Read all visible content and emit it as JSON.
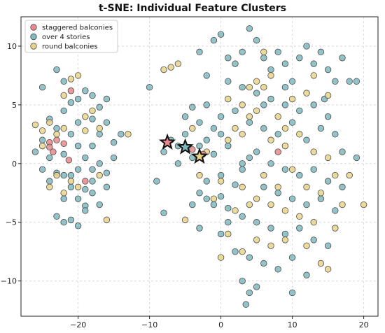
{
  "chart_data": {
    "type": "scatter",
    "title": "t-SNE: Individual Feature Clusters",
    "xlabel": "",
    "ylabel": "",
    "xlim": [
      -28,
      22
    ],
    "ylim": [
      -13,
      12.5
    ],
    "xticks": [
      -20,
      -10,
      0,
      10,
      20
    ],
    "yticks": [
      -10,
      -5,
      0,
      5,
      10
    ],
    "grid": true,
    "legend_position": "top-left",
    "series": [
      {
        "name": "staggered balconies",
        "color": "#e8888a",
        "points": [
          [
            -21,
            6.2
          ],
          [
            -24,
            1.8
          ],
          [
            -24,
            1.4
          ],
          [
            -23.5,
            1.0
          ],
          [
            -19,
            -1.5
          ],
          [
            -21.3,
            0.3
          ],
          [
            -23,
            2.0
          ],
          [
            8,
            1.0
          ],
          [
            -2.5,
            0.8
          ],
          [
            -4,
            1.2
          ],
          [
            -22,
            1.7
          ]
        ]
      },
      {
        "name": "over 4 stories",
        "color": "#7fb9be",
        "points": [
          [
            -25,
            6.5
          ],
          [
            -23,
            8.0
          ],
          [
            -22,
            7.0
          ],
          [
            -21,
            5.2
          ],
          [
            -20,
            5.5
          ],
          [
            -19,
            6.2
          ],
          [
            -18,
            5.8
          ],
          [
            -17,
            4.8
          ],
          [
            -16,
            5.5
          ],
          [
            -22,
            4.5
          ],
          [
            -20,
            3.5
          ],
          [
            -18,
            3.8
          ],
          [
            -23,
            3.0
          ],
          [
            -25,
            2.0
          ],
          [
            -26,
            1.0
          ],
          [
            -25,
            -0.5
          ],
          [
            -24,
            -1.5
          ],
          [
            -22,
            -1.0
          ],
          [
            -20,
            -0.5
          ],
          [
            -19,
            0.5
          ],
          [
            -18,
            1.5
          ],
          [
            -17,
            0.0
          ],
          [
            -16,
            -0.8
          ],
          [
            -15,
            1.8
          ],
          [
            -17,
            2.5
          ],
          [
            -23,
            -0.8
          ],
          [
            -21,
            -2.0
          ],
          [
            -20,
            -3.0
          ],
          [
            -19,
            -3.6
          ],
          [
            -18,
            -2.5
          ],
          [
            -17,
            -3.5
          ],
          [
            -23,
            -4.5
          ],
          [
            -22,
            -5.0
          ],
          [
            -21,
            -4.8
          ],
          [
            -20,
            -5.3
          ],
          [
            -19,
            -4.0
          ],
          [
            -22,
            -3.0
          ],
          [
            -21,
            -1.0
          ],
          [
            -18,
            -1.5
          ],
          [
            -16,
            -2.0
          ],
          [
            -24,
            0.5
          ],
          [
            -20,
            1.5
          ],
          [
            -22,
            0.8
          ],
          [
            -18,
            -0.5
          ],
          [
            -15,
            0.5
          ],
          [
            -14,
            2.5
          ],
          [
            -16,
            3.5
          ],
          [
            -24,
            3.8
          ],
          [
            -21,
            2.5
          ],
          [
            -19,
            -2.2
          ],
          [
            -10,
            6.5
          ],
          [
            -8,
            1.0
          ],
          [
            -7,
            2.0
          ],
          [
            -6,
            1.5
          ],
          [
            -5,
            2.5
          ],
          [
            -4,
            0.5
          ],
          [
            -3,
            1.5
          ],
          [
            -2,
            2.0
          ],
          [
            -1,
            3.0
          ],
          [
            0,
            2.5
          ],
          [
            -8,
            -4.2
          ],
          [
            -4,
            -3.5
          ],
          [
            -3,
            -2.5
          ],
          [
            -2,
            -3.0
          ],
          [
            -1,
            -3.5
          ],
          [
            0,
            -2.8
          ],
          [
            1,
            -3.8
          ],
          [
            -5,
            4.0
          ],
          [
            -3,
            3.5
          ],
          [
            -6,
            0.0
          ],
          [
            -9,
            -1.5
          ],
          [
            -2,
            -1.5
          ],
          [
            0,
            -1.0
          ],
          [
            2,
            -1.8
          ],
          [
            3,
            -0.5
          ],
          [
            4,
            0.5
          ],
          [
            -1,
            0.8
          ],
          [
            1,
            1.5
          ],
          [
            0,
            4.0
          ],
          [
            -4,
            4.8
          ],
          [
            -3,
            9.5
          ],
          [
            -1,
            10.5
          ],
          [
            0,
            11.0
          ],
          [
            1,
            9.0
          ],
          [
            2,
            8.5
          ],
          [
            3,
            9.5
          ],
          [
            4,
            11.5
          ],
          [
            5,
            10.5
          ],
          [
            6,
            9.0
          ],
          [
            7,
            8.0
          ],
          [
            8,
            9.5
          ],
          [
            9,
            8.5
          ],
          [
            10,
            7.0
          ],
          [
            11,
            9.0
          ],
          [
            12,
            10.0
          ],
          [
            13,
            8.5
          ],
          [
            14,
            9.5
          ],
          [
            15,
            8.0
          ],
          [
            16,
            7.0
          ],
          [
            17,
            9.0
          ],
          [
            -2,
            7.5
          ],
          [
            1,
            7.0
          ],
          [
            3,
            6.5
          ],
          [
            5,
            6.0
          ],
          [
            7,
            5.5
          ],
          [
            9,
            5.0
          ],
          [
            11,
            4.5
          ],
          [
            13,
            5.0
          ],
          [
            15,
            4.0
          ],
          [
            18,
            7.0
          ],
          [
            2,
            4.5
          ],
          [
            4,
            3.5
          ],
          [
            6,
            3.0
          ],
          [
            8,
            2.5
          ],
          [
            10,
            3.5
          ],
          [
            12,
            2.0
          ],
          [
            14,
            3.0
          ],
          [
            16,
            2.5
          ],
          [
            17,
            1.0
          ],
          [
            19,
            0.5
          ],
          [
            5,
            1.0
          ],
          [
            7,
            0.0
          ],
          [
            9,
            -0.5
          ],
          [
            11,
            -1.0
          ],
          [
            13,
            -0.5
          ],
          [
            15,
            -1.5
          ],
          [
            17,
            -2.0
          ],
          [
            6,
            -2.0
          ],
          [
            8,
            -2.5
          ],
          [
            10,
            -3.0
          ],
          [
            12,
            -3.5
          ],
          [
            14,
            -3.0
          ],
          [
            16,
            -4.0
          ],
          [
            3,
            -4.5
          ],
          [
            5,
            -5.0
          ],
          [
            7,
            -5.5
          ],
          [
            9,
            -6.0
          ],
          [
            11,
            -5.5
          ],
          [
            13,
            -6.5
          ],
          [
            15,
            -7.0
          ],
          [
            2,
            -7.5
          ],
          [
            4,
            -8.0
          ],
          [
            6,
            -8.5
          ],
          [
            8,
            -9.0
          ],
          [
            10,
            -8.0
          ],
          [
            12,
            -9.5
          ],
          [
            3,
            -10.0
          ],
          [
            4,
            -11.0
          ],
          [
            5,
            -10.5
          ],
          [
            3.5,
            -12.0
          ],
          [
            10,
            -11.0
          ],
          [
            0,
            -6.0
          ],
          [
            1,
            -5.0
          ],
          [
            -3,
            -5.5
          ],
          [
            6,
            5.0
          ],
          [
            9,
            6.5
          ],
          [
            19,
            7.0
          ],
          [
            14.5,
            5.5
          ],
          [
            -2,
            5.0
          ],
          [
            3,
            0.0
          ]
        ]
      },
      {
        "name": "round balconies",
        "color": "#e8d389",
        "points": [
          [
            -26,
            3.3
          ],
          [
            -25,
            2.8
          ],
          [
            -24,
            3.5
          ],
          [
            -23,
            2.5
          ],
          [
            -22,
            3.0
          ],
          [
            -21,
            7.2
          ],
          [
            -20,
            7.5
          ],
          [
            -19,
            4.0
          ],
          [
            -18,
            4.5
          ],
          [
            -17,
            3.0
          ],
          [
            -24,
            -2.0
          ],
          [
            -22,
            -2.5
          ],
          [
            -21,
            -1.5
          ],
          [
            -20,
            -2.0
          ],
          [
            -23,
            -1.0
          ],
          [
            -19,
            2.8
          ],
          [
            -17,
            -1.0
          ],
          [
            -16,
            -4.8
          ],
          [
            -25,
            1.5
          ],
          [
            -22,
            5.8
          ],
          [
            -13,
            2.5
          ],
          [
            -8,
            8.0
          ],
          [
            -6,
            8.5
          ],
          [
            -4,
            3.0
          ],
          [
            -2,
            1.0
          ],
          [
            1,
            2.0
          ],
          [
            2,
            3.0
          ],
          [
            3,
            2.5
          ],
          [
            4,
            4.0
          ],
          [
            5,
            4.5
          ],
          [
            6,
            6.5
          ],
          [
            7,
            7.5
          ],
          [
            8,
            4.0
          ],
          [
            9,
            3.0
          ],
          [
            10,
            5.5
          ],
          [
            12,
            6.0
          ],
          [
            13,
            7.5
          ],
          [
            4,
            6.5
          ],
          [
            5,
            7.0
          ],
          [
            6,
            9.5
          ],
          [
            7,
            2.0
          ],
          [
            9,
            1.5
          ],
          [
            11,
            2.5
          ],
          [
            13,
            1.0
          ],
          [
            15,
            0.5
          ],
          [
            16,
            -1.0
          ],
          [
            18,
            -1.0
          ],
          [
            20,
            -3.5
          ],
          [
            17,
            -3.5
          ],
          [
            16,
            -5.5
          ],
          [
            13,
            -5.0
          ],
          [
            11,
            -4.5
          ],
          [
            9,
            -4.0
          ],
          [
            7,
            -3.5
          ],
          [
            5,
            -3.0
          ],
          [
            3,
            -2.0
          ],
          [
            2,
            -4.0
          ],
          [
            1,
            -6.0
          ],
          [
            3,
            -7.5
          ],
          [
            5,
            -6.5
          ],
          [
            7,
            -7.0
          ],
          [
            9,
            -6.5
          ],
          [
            12,
            -7.0
          ],
          [
            14,
            -8.5
          ],
          [
            15,
            -9.0
          ],
          [
            0,
            -8.0
          ],
          [
            -1,
            -3.0
          ],
          [
            -5,
            -4.8
          ],
          [
            -3,
            -1.0
          ],
          [
            0,
            -1.5
          ],
          [
            4,
            -3.5
          ],
          [
            6,
            -1.0
          ],
          [
            8,
            -2.0
          ],
          [
            10,
            -0.5
          ],
          [
            12,
            -2.0
          ],
          [
            14,
            -2.5
          ],
          [
            15,
            5.8
          ],
          [
            3,
            5.0
          ],
          [
            1,
            5.5
          ],
          [
            -7,
            8.2
          ]
        ]
      }
    ],
    "star_markers": [
      {
        "x": -7.5,
        "y": 1.8,
        "color": "#e8888a"
      },
      {
        "x": -5.0,
        "y": 1.4,
        "color": "#7fb9be"
      },
      {
        "x": -3.0,
        "y": 0.6,
        "color": "#e8d389"
      }
    ]
  }
}
